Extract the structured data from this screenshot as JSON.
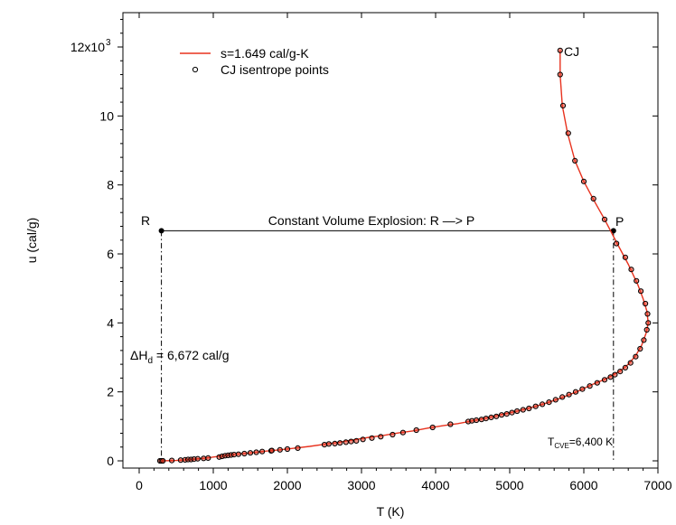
{
  "chart_data": {
    "type": "line",
    "xlabel": "T (K)",
    "ylabel": "u (cal/g)",
    "xlim": [
      0,
      7000
    ],
    "ylim": [
      -200,
      13000
    ],
    "x_ticks": [
      0,
      1000,
      2000,
      3000,
      4000,
      5000,
      6000,
      7000
    ],
    "x_tick_labels": [
      "0",
      "1000",
      "2000",
      "3000",
      "4000",
      "5000",
      "6000",
      "7000"
    ],
    "y_ticks": [
      0,
      2000,
      4000,
      6000,
      8000,
      10000,
      12000
    ],
    "y_tick_labels": [
      "0",
      "2",
      "4",
      "6",
      "8",
      "10",
      "12x10"
    ],
    "y_tick_label_top_superscript": "3",
    "grid": false,
    "legend": {
      "placement": "top-left",
      "entries": [
        {
          "label": "s=1.649 cal/g-K",
          "marker": "line",
          "color": "#e8321e"
        },
        {
          "label": "CJ isentrope points",
          "marker": "open-circle",
          "color": "#000000"
        }
      ]
    },
    "series": [
      {
        "name": "s=1.649 cal/g-K",
        "style": "line",
        "color": "#e8321e",
        "points": [
          [
            300,
            0
          ],
          [
            500,
            10
          ],
          [
            700,
            40
          ],
          [
            900,
            80
          ],
          [
            1100,
            140
          ],
          [
            1300,
            190
          ],
          [
            1500,
            230
          ],
          [
            1700,
            280
          ],
          [
            1900,
            320
          ],
          [
            2100,
            370
          ],
          [
            2300,
            420
          ],
          [
            2500,
            480
          ],
          [
            2700,
            540
          ],
          [
            2900,
            610
          ],
          [
            3100,
            680
          ],
          [
            3300,
            740
          ],
          [
            3500,
            810
          ],
          [
            3700,
            870
          ],
          [
            3900,
            950
          ],
          [
            4100,
            1020
          ],
          [
            4300,
            1080
          ],
          [
            4500,
            1160
          ],
          [
            4700,
            1250
          ],
          [
            4900,
            1350
          ],
          [
            5100,
            1440
          ],
          [
            5300,
            1550
          ],
          [
            5500,
            1680
          ],
          [
            5700,
            1830
          ],
          [
            5900,
            2000
          ],
          [
            6100,
            2200
          ],
          [
            6300,
            2380
          ],
          [
            6500,
            2620
          ],
          [
            6600,
            2800
          ],
          [
            6700,
            3050
          ],
          [
            6780,
            3350
          ],
          [
            6840,
            3700
          ],
          [
            6870,
            4000
          ],
          [
            6850,
            4350
          ],
          [
            6800,
            4700
          ],
          [
            6730,
            5100
          ],
          [
            6600,
            5700
          ],
          [
            6450,
            6300
          ],
          [
            6280,
            7000
          ],
          [
            6150,
            7500
          ],
          [
            6000,
            8100
          ],
          [
            5880,
            8700
          ],
          [
            5780,
            9500
          ],
          [
            5710,
            10300
          ],
          [
            5680,
            11200
          ],
          [
            5680,
            11900
          ]
        ]
      },
      {
        "name": "CJ isentrope points",
        "style": "scatter",
        "color": "#000000",
        "points": [
          [
            280,
            0
          ],
          [
            300,
            0
          ],
          [
            320,
            0
          ],
          [
            440,
            10
          ],
          [
            560,
            20
          ],
          [
            620,
            30
          ],
          [
            660,
            40
          ],
          [
            700,
            40
          ],
          [
            740,
            50
          ],
          [
            790,
            60
          ],
          [
            870,
            70
          ],
          [
            930,
            80
          ],
          [
            1080,
            110
          ],
          [
            1120,
            130
          ],
          [
            1160,
            150
          ],
          [
            1200,
            160
          ],
          [
            1240,
            170
          ],
          [
            1280,
            180
          ],
          [
            1340,
            190
          ],
          [
            1420,
            210
          ],
          [
            1500,
            230
          ],
          [
            1580,
            250
          ],
          [
            1660,
            270
          ],
          [
            1780,
            290
          ],
          [
            1790,
            300
          ],
          [
            1900,
            320
          ],
          [
            2000,
            340
          ],
          [
            2140,
            370
          ],
          [
            2500,
            470
          ],
          [
            2560,
            490
          ],
          [
            2640,
            500
          ],
          [
            2710,
            520
          ],
          [
            2790,
            540
          ],
          [
            2860,
            560
          ],
          [
            2930,
            580
          ],
          [
            3020,
            620
          ],
          [
            3140,
            660
          ],
          [
            3260,
            700
          ],
          [
            3420,
            760
          ],
          [
            3560,
            820
          ],
          [
            3740,
            890
          ],
          [
            3960,
            970
          ],
          [
            4200,
            1060
          ],
          [
            4440,
            1140
          ],
          [
            4490,
            1160
          ],
          [
            4550,
            1180
          ],
          [
            4620,
            1200
          ],
          [
            4680,
            1230
          ],
          [
            4750,
            1260
          ],
          [
            4820,
            1290
          ],
          [
            4890,
            1330
          ],
          [
            4960,
            1360
          ],
          [
            5030,
            1400
          ],
          [
            5100,
            1440
          ],
          [
            5180,
            1480
          ],
          [
            5260,
            1520
          ],
          [
            5350,
            1580
          ],
          [
            5440,
            1640
          ],
          [
            5530,
            1700
          ],
          [
            5620,
            1770
          ],
          [
            5710,
            1850
          ],
          [
            5800,
            1920
          ],
          [
            5890,
            2000
          ],
          [
            5980,
            2080
          ],
          [
            6080,
            2170
          ],
          [
            6180,
            2260
          ],
          [
            6280,
            2350
          ],
          [
            6360,
            2430
          ],
          [
            6420,
            2500
          ],
          [
            6490,
            2590
          ],
          [
            6560,
            2700
          ],
          [
            6630,
            2840
          ],
          [
            6700,
            3020
          ],
          [
            6760,
            3250
          ],
          [
            6810,
            3500
          ],
          [
            6850,
            3800
          ],
          [
            6870,
            4000
          ],
          [
            6860,
            4260
          ],
          [
            6830,
            4560
          ],
          [
            6770,
            4920
          ],
          [
            6710,
            5220
          ],
          [
            6640,
            5550
          ],
          [
            6560,
            5900
          ],
          [
            6440,
            6300
          ],
          [
            6280,
            7000
          ],
          [
            6130,
            7600
          ],
          [
            6000,
            8100
          ],
          [
            5880,
            8700
          ],
          [
            5790,
            9500
          ],
          [
            5720,
            10300
          ],
          [
            5680,
            11200
          ],
          [
            5680,
            11900
          ]
        ]
      }
    ],
    "annotations": {
      "cj_label": "CJ",
      "cve_line_label": "Constant Volume Explosion: R —> P",
      "point_r": {
        "label": "R",
        "x": 300,
        "y": 6672
      },
      "point_p": {
        "label": "P",
        "x": 6400,
        "y": 6672
      },
      "delta_h": {
        "symbol": "ΔH",
        "subscript": "d",
        "value_text": " = 6,672 cal/g"
      },
      "t_cve": {
        "symbol": "T",
        "subscript": "CVE",
        "value_text": "=6,400 K"
      }
    }
  }
}
